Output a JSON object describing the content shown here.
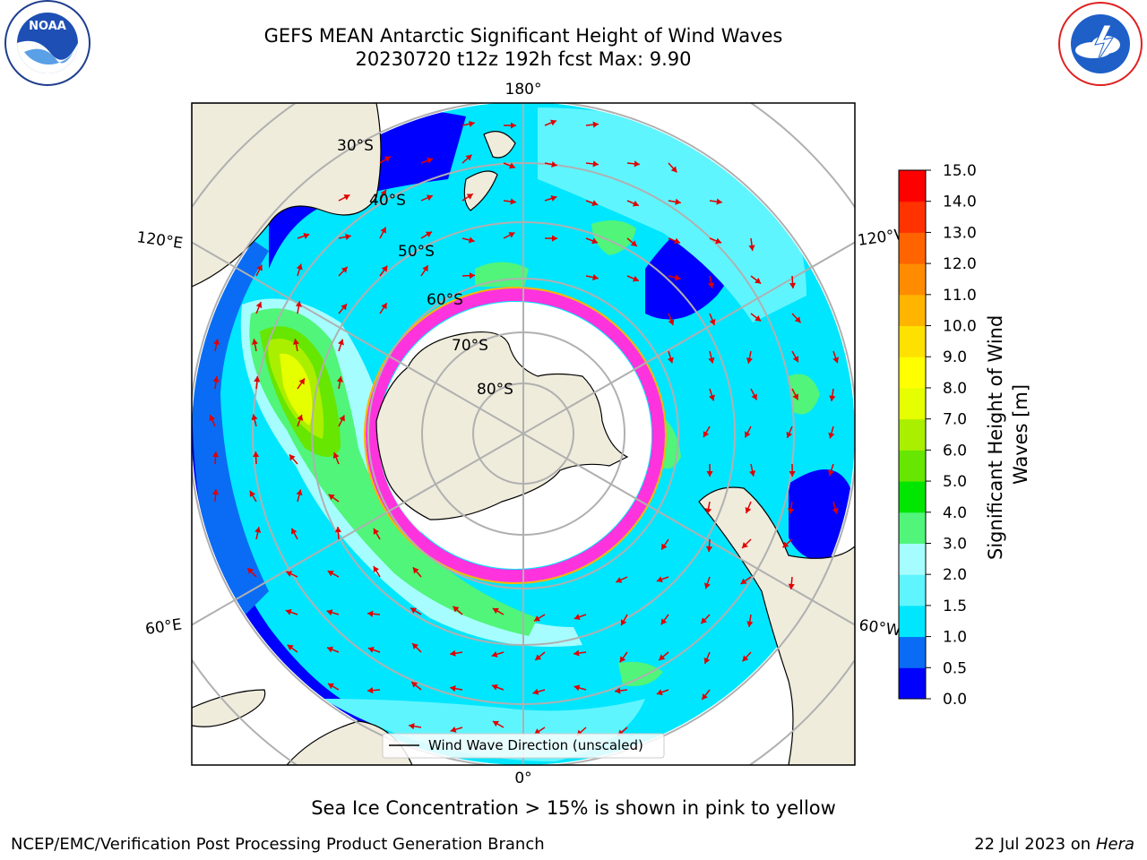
{
  "title_line1": "GEFS MEAN Antarctic Significant Height of Wind Waves",
  "title_line2": "20230720 t12z 192h fcst   Max: 9.90",
  "longitude_labels": {
    "top": "180°",
    "bottom": "0°",
    "upper_left": "120°E",
    "upper_right": "120°W",
    "lower_left": "60°E",
    "lower_right": "60°W"
  },
  "latitude_labels": [
    "30°S",
    "40°S",
    "50°S",
    "60°S",
    "70°S",
    "80°S"
  ],
  "legend_label": "Wind Wave Direction (unscaled)",
  "colorbar": {
    "label": "Significant Height of Wind Waves [m]",
    "label_line1": "Significant Height of Wind",
    "label_line2": "Waves [m]",
    "ticks": [
      "0.0",
      "0.5",
      "1.0",
      "1.5",
      "2.0",
      "3.0",
      "4.0",
      "5.0",
      "6.0",
      "7.0",
      "8.0",
      "9.0",
      "10.0",
      "11.0",
      "12.0",
      "13.0",
      "14.0",
      "15.0"
    ],
    "colors": [
      "#0000ff",
      "#0a6cf5",
      "#00e6ff",
      "#5ff5ff",
      "#a6fdff",
      "#50f57a",
      "#00e600",
      "#66e600",
      "#aaef00",
      "#e6ff00",
      "#ffff00",
      "#ffe100",
      "#ffb400",
      "#ff8c00",
      "#ff6400",
      "#ff3200",
      "#ff0000"
    ]
  },
  "sea_ice_note": "Sea Ice Concentration > 15% is shown in pink to yellow",
  "credit": "NCEP/EMC/Verification Post Processing Product Generation Branch",
  "date_stamp": "22 Jul 2023 on ",
  "host": "Hera",
  "logos": {
    "left": "NOAA",
    "right": "National Weather Service"
  }
}
